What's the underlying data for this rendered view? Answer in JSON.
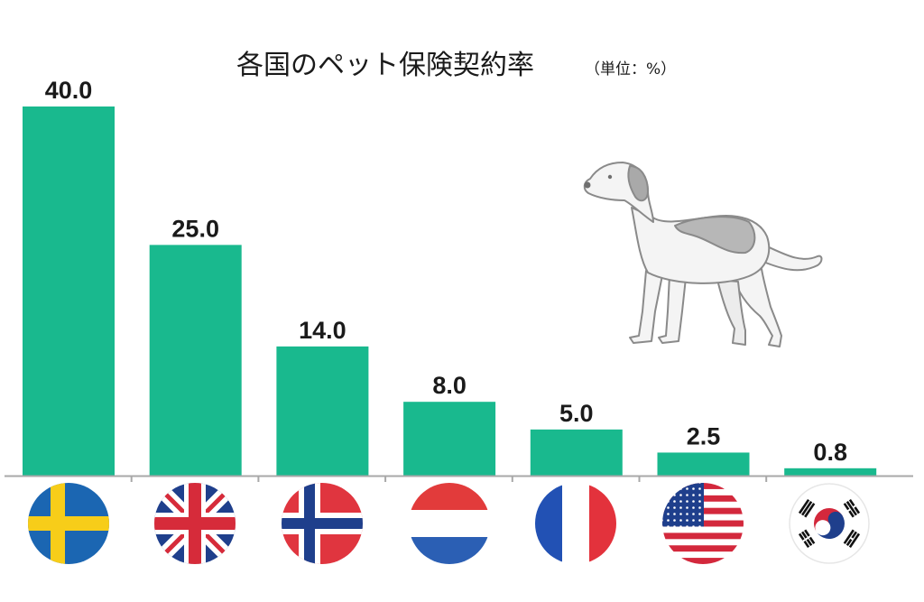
{
  "title": "各国のペット保険契約率",
  "unit_note": "（単位：%）",
  "colors": {
    "bar": "#19b98e",
    "axis": "#a8a8a8"
  },
  "chart_data": {
    "type": "bar",
    "title": "各国のペット保険契約率",
    "unit": "%",
    "categories": [
      "sweden-flag",
      "uk-flag",
      "norway-flag",
      "netherlands-flag",
      "france-flag",
      "usa-flag",
      "south-korea-flag"
    ],
    "values": [
      40.0,
      25.0,
      14.0,
      8.0,
      5.0,
      2.5,
      0.8
    ],
    "value_labels": [
      "40.0",
      "25.0",
      "14.0",
      "8.0",
      "5.0",
      "2.5",
      "0.8"
    ],
    "ylim": [
      0,
      40
    ],
    "grid": false,
    "legend": "none"
  },
  "illustration": "dog-illustration"
}
